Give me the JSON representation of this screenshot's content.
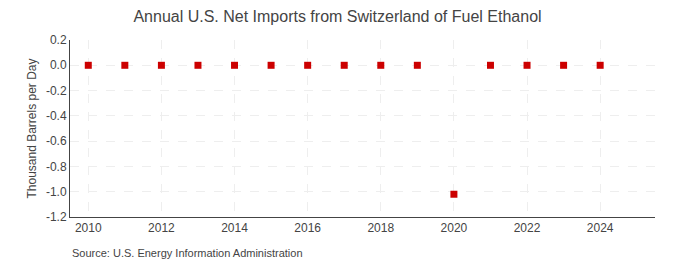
{
  "chart_data": {
    "type": "scatter",
    "title": "Annual U.S. Net Imports from Switzerland of Fuel Ethanol",
    "ylabel": "Thousand Barrels per Day",
    "annotations": [
      "Source: U.S. Energy Information Administration"
    ],
    "x": [
      2010,
      2011,
      2012,
      2013,
      2014,
      2015,
      2016,
      2017,
      2018,
      2019,
      2020,
      2021,
      2022,
      2023,
      2024
    ],
    "values": [
      0,
      0,
      0,
      0,
      0,
      0,
      0,
      0,
      0,
      0,
      -1.02,
      0,
      0,
      0,
      0
    ],
    "color": "#cc0000",
    "marker": "square",
    "xlim": [
      2009.5,
      2025.5
    ],
    "xticks": [
      2010,
      2012,
      2014,
      2016,
      2018,
      2020,
      2022,
      2024
    ],
    "ylim": [
      -1.2,
      0.2
    ],
    "yticks": [
      0.2,
      {
        "value": 0,
        "label": "0.0"
      },
      -0.2,
      -0.4,
      -0.6,
      -0.8,
      {
        "value": -1,
        "label": "-1.0"
      },
      -1.2
    ],
    "grid": true
  }
}
